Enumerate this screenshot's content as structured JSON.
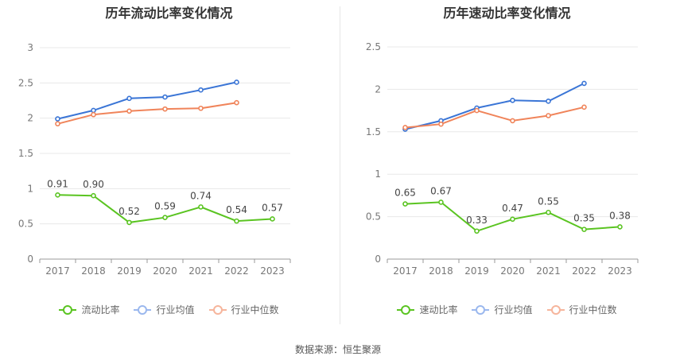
{
  "chart_data": [
    {
      "type": "line",
      "title": "历年流动比率变化情况",
      "categories": [
        "2017",
        "2018",
        "2019",
        "2020",
        "2021",
        "2022",
        "2023"
      ],
      "ylim": [
        0,
        3
      ],
      "yticks": [
        "0",
        "0.5",
        "1",
        "1.5",
        "2",
        "2.5",
        "3"
      ],
      "ytick_values": [
        0,
        0.5,
        1,
        1.5,
        2,
        2.5,
        3
      ],
      "series": [
        {
          "name": "流动比率",
          "color": "#5ac421",
          "values": [
            0.91,
            0.9,
            0.52,
            0.59,
            0.74,
            0.54,
            0.57
          ],
          "labels": [
            "0.91",
            "0.90",
            "0.52",
            "0.59",
            "0.74",
            "0.54",
            "0.57"
          ]
        },
        {
          "name": "行业均值",
          "color": "#3a75d6",
          "values": [
            1.99,
            2.11,
            2.28,
            2.3,
            2.4,
            2.51,
            null
          ]
        },
        {
          "name": "行业中位数",
          "color": "#f0845a",
          "values": [
            1.92,
            2.05,
            2.1,
            2.13,
            2.14,
            2.22,
            null
          ]
        }
      ]
    },
    {
      "type": "line",
      "title": "历年速动比率变化情况",
      "categories": [
        "2017",
        "2018",
        "2019",
        "2020",
        "2021",
        "2022",
        "2023"
      ],
      "ylim": [
        0,
        2.5
      ],
      "yticks": [
        "0",
        "0.5",
        "1",
        "1.5",
        "2",
        "2.5"
      ],
      "ytick_values": [
        0,
        0.5,
        1,
        1.5,
        2,
        2.5
      ],
      "series": [
        {
          "name": "速动比率",
          "color": "#5ac421",
          "values": [
            0.65,
            0.67,
            0.33,
            0.47,
            0.55,
            0.35,
            0.38
          ],
          "labels": [
            "0.65",
            "0.67",
            "0.33",
            "0.47",
            "0.55",
            "0.35",
            "0.38"
          ]
        },
        {
          "name": "行业均值",
          "color": "#3a75d6",
          "values": [
            1.53,
            1.63,
            1.78,
            1.87,
            1.86,
            2.07,
            null
          ]
        },
        {
          "name": "行业中位数",
          "color": "#f0845a",
          "values": [
            1.55,
            1.59,
            1.75,
            1.63,
            1.69,
            1.79,
            null
          ]
        }
      ]
    }
  ],
  "legend_left": [
    "流动比率",
    "行业均值",
    "行业中位数"
  ],
  "legend_right": [
    "速动比率",
    "行业均值",
    "行业中位数"
  ],
  "legend_marker_colors": [
    "#5ac421",
    "#9bb8ee",
    "#f6b59c"
  ],
  "source": "数据来源：恒生聚源"
}
